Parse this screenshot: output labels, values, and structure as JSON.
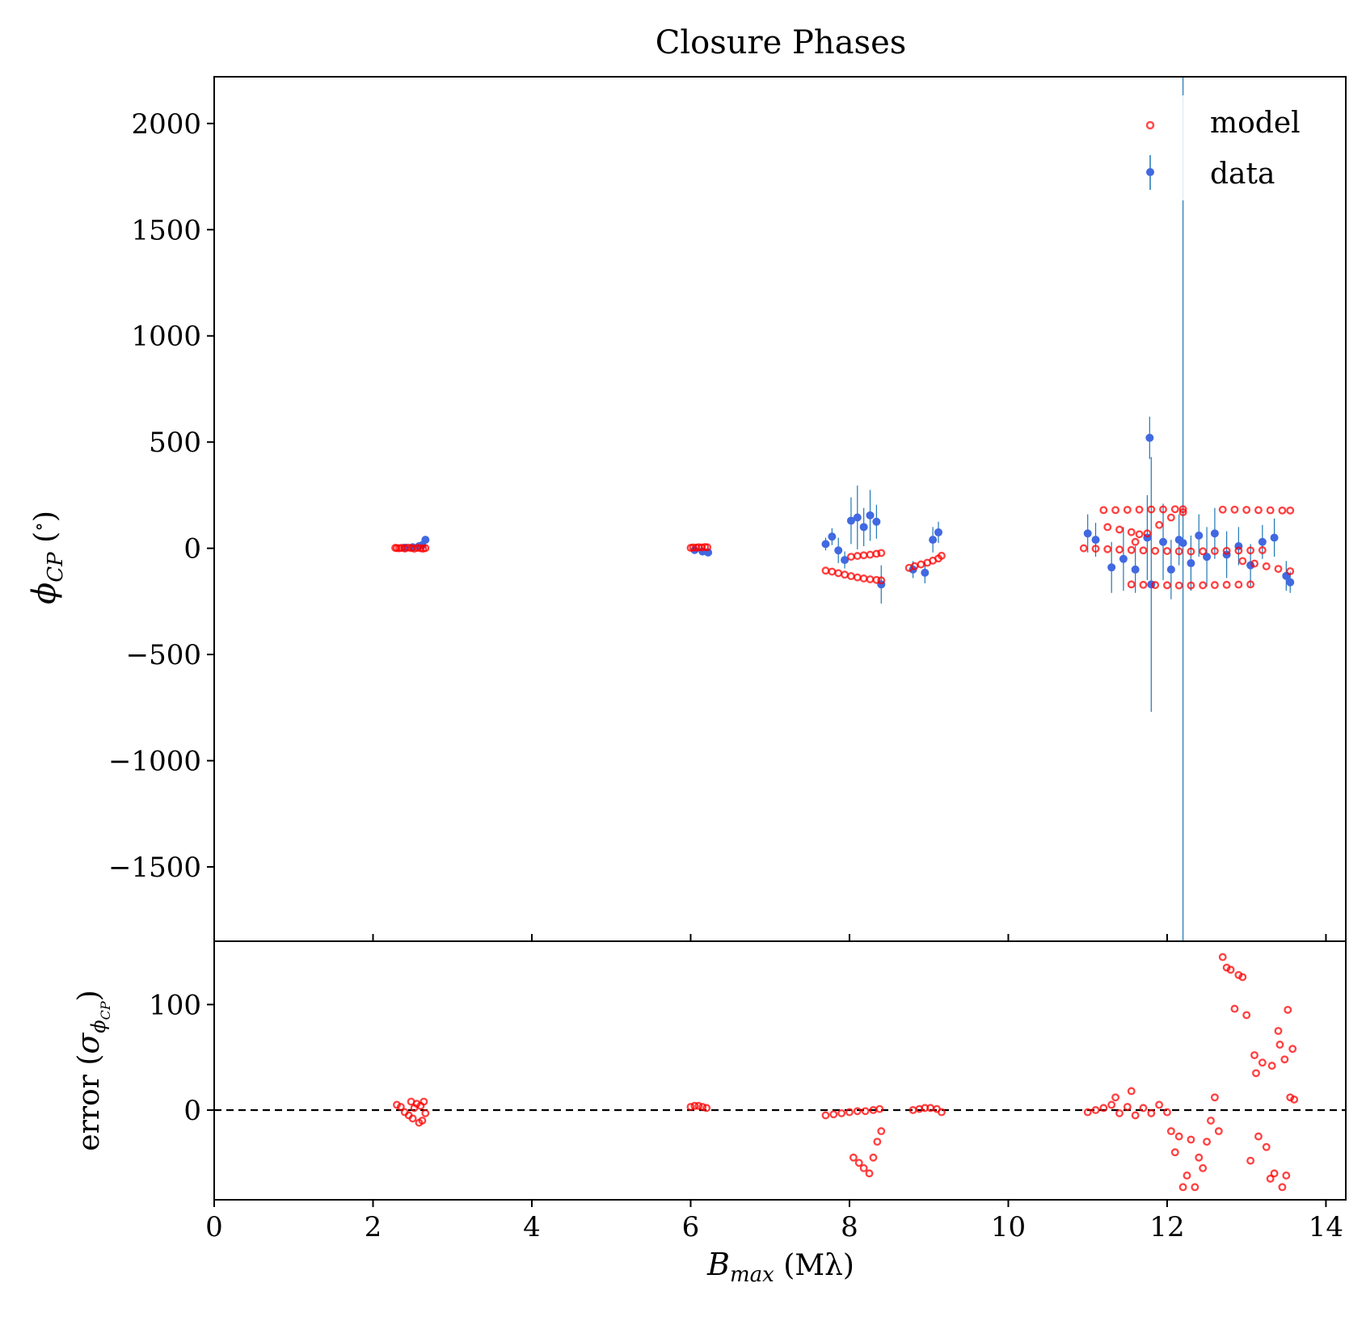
{
  "chart_data": [
    {
      "type": "scatter",
      "title": "Closure Phases",
      "ylabel": "φCP (°)",
      "xlim": [
        0,
        14.25
      ],
      "ylim": [
        -1850,
        2220
      ],
      "xticks": [
        0,
        2,
        4,
        6,
        8,
        10,
        12,
        14
      ],
      "yticks": [
        -1500,
        -1000,
        -500,
        0,
        500,
        1000,
        1500,
        2000
      ],
      "ytick_labels": [
        "−1500",
        "−1000",
        "−500",
        "0",
        "500",
        "1000",
        "1500",
        "2000"
      ],
      "legend": {
        "position": "top-right",
        "entries": [
          "model",
          "data"
        ]
      },
      "colors": {
        "model": "#ff0000",
        "data": "#4169e1",
        "errorbar": "#1f77b4"
      },
      "series": [
        {
          "name": "model",
          "marker": "open-circle",
          "points": [
            [
              2.28,
              2
            ],
            [
              2.3,
              1
            ],
            [
              2.33,
              0
            ],
            [
              2.36,
              2
            ],
            [
              2.4,
              -1
            ],
            [
              2.44,
              3
            ],
            [
              2.48,
              1
            ],
            [
              2.52,
              -2
            ],
            [
              2.56,
              2
            ],
            [
              2.6,
              0
            ],
            [
              2.63,
              -2
            ],
            [
              2.66,
              1
            ],
            [
              6.0,
              2
            ],
            [
              6.03,
              4
            ],
            [
              6.07,
              3
            ],
            [
              6.1,
              5
            ],
            [
              6.14,
              4
            ],
            [
              6.18,
              6
            ],
            [
              6.21,
              5
            ],
            [
              7.7,
              -105
            ],
            [
              7.78,
              -110
            ],
            [
              7.86,
              -117
            ],
            [
              7.94,
              -124
            ],
            [
              8.02,
              -131
            ],
            [
              8.1,
              -137
            ],
            [
              8.18,
              -142
            ],
            [
              8.26,
              -146
            ],
            [
              8.34,
              -149
            ],
            [
              8.4,
              -151
            ],
            [
              8.02,
              -40
            ],
            [
              8.1,
              -36
            ],
            [
              8.18,
              -33
            ],
            [
              8.26,
              -30
            ],
            [
              8.34,
              -26
            ],
            [
              8.4,
              -22
            ],
            [
              8.75,
              -92
            ],
            [
              8.82,
              -84
            ],
            [
              8.9,
              -76
            ],
            [
              8.98,
              -68
            ],
            [
              9.05,
              -58
            ],
            [
              9.12,
              -48
            ],
            [
              9.16,
              -35
            ],
            [
              10.95,
              0
            ],
            [
              11.1,
              -2
            ],
            [
              11.25,
              -4
            ],
            [
              11.4,
              -6
            ],
            [
              11.55,
              -8
            ],
            [
              11.7,
              -10
            ],
            [
              11.85,
              -12
            ],
            [
              12.0,
              -13
            ],
            [
              12.15,
              -14
            ],
            [
              12.3,
              -15
            ],
            [
              12.45,
              -14
            ],
            [
              12.6,
              -13
            ],
            [
              12.75,
              -12
            ],
            [
              12.9,
              -11
            ],
            [
              13.05,
              -10
            ],
            [
              13.2,
              -9
            ],
            [
              11.2,
              180
            ],
            [
              11.35,
              180
            ],
            [
              11.5,
              181
            ],
            [
              11.65,
              182
            ],
            [
              11.8,
              183
            ],
            [
              11.95,
              183
            ],
            [
              12.1,
              184
            ],
            [
              12.2,
              184
            ],
            [
              12.7,
              182
            ],
            [
              12.85,
              182
            ],
            [
              13.0,
              181
            ],
            [
              13.15,
              180
            ],
            [
              13.3,
              179
            ],
            [
              13.45,
              178
            ],
            [
              13.55,
              178
            ],
            [
              11.55,
              -170
            ],
            [
              11.7,
              -172
            ],
            [
              11.85,
              -173
            ],
            [
              12.0,
              -174
            ],
            [
              12.15,
              -175
            ],
            [
              12.3,
              -175
            ],
            [
              12.45,
              -174
            ],
            [
              12.6,
              -173
            ],
            [
              12.75,
              -172
            ],
            [
              12.9,
              -171
            ],
            [
              13.05,
              -170
            ],
            [
              11.25,
              100
            ],
            [
              11.4,
              88
            ],
            [
              11.55,
              76
            ],
            [
              11.65,
              66
            ],
            [
              11.6,
              30
            ],
            [
              11.75,
              70
            ],
            [
              11.9,
              110
            ],
            [
              12.05,
              145
            ],
            [
              12.2,
              170
            ],
            [
              12.95,
              -60
            ],
            [
              13.1,
              -72
            ],
            [
              13.25,
              -85
            ],
            [
              13.4,
              -97
            ],
            [
              13.55,
              -108
            ]
          ]
        },
        {
          "name": "data",
          "marker": "filled-circle",
          "points": [
            [
              2.4,
              3,
              8
            ],
            [
              2.5,
              5,
              8
            ],
            [
              2.58,
              10,
              10
            ],
            [
              2.62,
              15,
              10
            ],
            [
              2.66,
              40,
              12
            ],
            [
              6.05,
              -8,
              10
            ],
            [
              6.15,
              -15,
              10
            ],
            [
              6.22,
              -20,
              12
            ],
            [
              7.7,
              20,
              30
            ],
            [
              7.78,
              55,
              40
            ],
            [
              7.86,
              -10,
              60
            ],
            [
              7.94,
              -55,
              40
            ],
            [
              8.02,
              130,
              110
            ],
            [
              8.1,
              145,
              150
            ],
            [
              8.18,
              100,
              90
            ],
            [
              8.26,
              155,
              120
            ],
            [
              8.34,
              125,
              80
            ],
            [
              8.4,
              -170,
              90
            ],
            [
              8.8,
              -100,
              40
            ],
            [
              8.95,
              -115,
              50
            ],
            [
              9.05,
              40,
              60
            ],
            [
              9.12,
              75,
              50
            ],
            [
              11.0,
              70,
              90
            ],
            [
              11.1,
              40,
              80
            ],
            [
              11.3,
              -90,
              120
            ],
            [
              11.45,
              -50,
              150
            ],
            [
              11.6,
              -100,
              110
            ],
            [
              11.75,
              50,
              200
            ],
            [
              11.78,
              520,
              100
            ],
            [
              11.8,
              -170,
              600
            ],
            [
              11.95,
              30,
              180
            ],
            [
              12.05,
              -100,
              140
            ],
            [
              12.15,
              40,
              120
            ],
            [
              12.2,
              25,
              4500
            ],
            [
              12.3,
              -70,
              130
            ],
            [
              12.4,
              60,
              100
            ],
            [
              12.5,
              -40,
              140
            ],
            [
              12.6,
              70,
              120
            ],
            [
              12.75,
              -30,
              110
            ],
            [
              12.9,
              10,
              90
            ],
            [
              13.05,
              -80,
              100
            ],
            [
              13.2,
              30,
              80
            ],
            [
              13.35,
              50,
              90
            ],
            [
              13.5,
              -130,
              70
            ],
            [
              13.55,
              -160,
              50
            ]
          ]
        }
      ]
    },
    {
      "type": "scatter",
      "xlabel": "Bmax (Mλ)",
      "ylabel": "error (σφCP)",
      "xlim": [
        0,
        14.25
      ],
      "ylim": [
        -85,
        160
      ],
      "xticks": [
        0,
        2,
        4,
        6,
        8,
        10,
        12,
        14
      ],
      "yticks": [
        0,
        100
      ],
      "reference_line": {
        "y": 0,
        "style": "dashed",
        "color": "#000000"
      },
      "series": [
        {
          "name": "error",
          "marker": "open-circle",
          "points": [
            [
              2.3,
              5
            ],
            [
              2.35,
              3
            ],
            [
              2.4,
              -2
            ],
            [
              2.45,
              -5
            ],
            [
              2.48,
              8
            ],
            [
              2.5,
              -8
            ],
            [
              2.52,
              2
            ],
            [
              2.55,
              6
            ],
            [
              2.58,
              -12
            ],
            [
              2.6,
              4
            ],
            [
              2.62,
              -10
            ],
            [
              2.64,
              8
            ],
            [
              2.66,
              -3
            ],
            [
              6.0,
              3
            ],
            [
              6.05,
              4
            ],
            [
              6.1,
              4
            ],
            [
              6.15,
              3
            ],
            [
              6.2,
              2
            ],
            [
              7.7,
              -5
            ],
            [
              7.8,
              -4
            ],
            [
              7.9,
              -3
            ],
            [
              8.0,
              -2
            ],
            [
              8.1,
              -1
            ],
            [
              8.2,
              -1
            ],
            [
              8.3,
              0
            ],
            [
              8.38,
              1
            ],
            [
              8.05,
              -45
            ],
            [
              8.12,
              -50
            ],
            [
              8.18,
              -55
            ],
            [
              8.25,
              -60
            ],
            [
              8.3,
              -45
            ],
            [
              8.35,
              -30
            ],
            [
              8.4,
              -20
            ],
            [
              8.8,
              0
            ],
            [
              8.88,
              1
            ],
            [
              8.95,
              2
            ],
            [
              9.02,
              2
            ],
            [
              9.1,
              1
            ],
            [
              9.16,
              -2
            ],
            [
              11.0,
              -2
            ],
            [
              11.1,
              0
            ],
            [
              11.2,
              2
            ],
            [
              11.3,
              5
            ],
            [
              11.35,
              12
            ],
            [
              11.4,
              -3
            ],
            [
              11.5,
              3
            ],
            [
              11.55,
              18
            ],
            [
              11.6,
              -5
            ],
            [
              11.7,
              2
            ],
            [
              11.8,
              -3
            ],
            [
              11.9,
              5
            ],
            [
              12.0,
              -2
            ],
            [
              12.05,
              -20
            ],
            [
              12.1,
              -40
            ],
            [
              12.15,
              -25
            ],
            [
              12.2,
              -73
            ],
            [
              12.25,
              -62
            ],
            [
              12.3,
              -28
            ],
            [
              12.35,
              -73
            ],
            [
              12.4,
              -45
            ],
            [
              12.45,
              -55
            ],
            [
              12.5,
              -30
            ],
            [
              12.55,
              -10
            ],
            [
              12.6,
              12
            ],
            [
              12.65,
              -20
            ],
            [
              12.7,
              145
            ],
            [
              12.75,
              135
            ],
            [
              12.8,
              133
            ],
            [
              12.85,
              96
            ],
            [
              12.9,
              128
            ],
            [
              12.95,
              126
            ],
            [
              13.0,
              90
            ],
            [
              13.05,
              -48
            ],
            [
              13.1,
              52
            ],
            [
              13.12,
              35
            ],
            [
              13.15,
              -25
            ],
            [
              13.2,
              45
            ],
            [
              13.25,
              -35
            ],
            [
              13.3,
              -65
            ],
            [
              13.32,
              42
            ],
            [
              13.35,
              -60
            ],
            [
              13.4,
              75
            ],
            [
              13.42,
              62
            ],
            [
              13.45,
              -73
            ],
            [
              13.48,
              48
            ],
            [
              13.5,
              -62
            ],
            [
              13.52,
              95
            ],
            [
              13.55,
              12
            ],
            [
              13.58,
              58
            ],
            [
              13.6,
              10
            ]
          ]
        }
      ]
    }
  ]
}
